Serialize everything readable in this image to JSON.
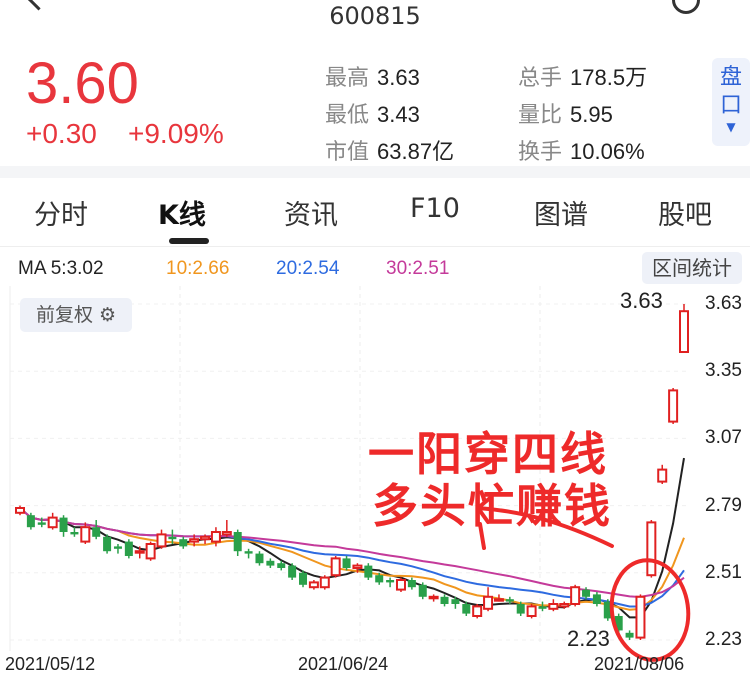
{
  "header": {
    "title": "600815",
    "back_icon": "chevron-left-icon",
    "search_icon": "search-icon"
  },
  "quote": {
    "price": "3.60",
    "change": "+0.30",
    "change_pct": "+9.09%",
    "color": "#e8363d",
    "stats": [
      {
        "k": "最高",
        "v": "3.63"
      },
      {
        "k": "最低",
        "v": "3.43"
      },
      {
        "k": "市值",
        "v": "63.87亿"
      },
      {
        "k": "总手",
        "v": "178.5万"
      },
      {
        "k": "量比",
        "v": "5.95"
      },
      {
        "k": "换手",
        "v": "10.06%"
      }
    ],
    "pankou": "盘口"
  },
  "tabs": [
    {
      "label": "分时"
    },
    {
      "label": "K线",
      "active": true
    },
    {
      "label": "资讯"
    },
    {
      "label": "F10"
    },
    {
      "label": "图谱"
    },
    {
      "label": "股吧"
    }
  ],
  "ma": {
    "ma5": "MA 5:3.02",
    "ma10": "10:2.66",
    "ma20": "20:2.54",
    "ma30": "30:2.51",
    "colors": {
      "ma5": "#222222",
      "ma10": "#f0961e",
      "ma20": "#2e6be0",
      "ma30": "#c43a9a"
    }
  },
  "range_stats": "区间统计",
  "adjust": "前复权",
  "annotation": {
    "line1": "一阳穿四线",
    "line2": "多头忙赚钱"
  },
  "chart_data": {
    "type": "candlestick",
    "y_ticks": [
      "3.63",
      "3.35",
      "3.07",
      "2.79",
      "2.51",
      "2.23"
    ],
    "x_ticks": [
      "2021/05/12",
      "2021/06/24",
      "2021/08/06"
    ],
    "high_label": "3.63",
    "low_label": "2.23",
    "up_color": "#e02020",
    "down_color": "#2aa04a",
    "candles_ohlc": [
      [
        2.76,
        2.79,
        2.75,
        2.78
      ],
      [
        2.75,
        2.76,
        2.69,
        2.7
      ],
      [
        2.72,
        2.74,
        2.7,
        2.71
      ],
      [
        2.7,
        2.76,
        2.69,
        2.74
      ],
      [
        2.74,
        2.75,
        2.66,
        2.68
      ],
      [
        2.68,
        2.7,
        2.66,
        2.67
      ],
      [
        2.64,
        2.72,
        2.63,
        2.7
      ],
      [
        2.7,
        2.73,
        2.65,
        2.66
      ],
      [
        2.66,
        2.67,
        2.59,
        2.6
      ],
      [
        2.62,
        2.63,
        2.59,
        2.61
      ],
      [
        2.64,
        2.65,
        2.57,
        2.58
      ],
      [
        2.6,
        2.62,
        2.57,
        2.6
      ],
      [
        2.57,
        2.64,
        2.56,
        2.63
      ],
      [
        2.62,
        2.69,
        2.61,
        2.67
      ],
      [
        2.66,
        2.69,
        2.63,
        2.65
      ],
      [
        2.65,
        2.66,
        2.61,
        2.62
      ],
      [
        2.64,
        2.67,
        2.62,
        2.65
      ],
      [
        2.65,
        2.67,
        2.63,
        2.66
      ],
      [
        2.64,
        2.7,
        2.62,
        2.68
      ],
      [
        2.67,
        2.73,
        2.66,
        2.68
      ],
      [
        2.68,
        2.69,
        2.58,
        2.6
      ],
      [
        2.6,
        2.61,
        2.57,
        2.59
      ],
      [
        2.59,
        2.6,
        2.54,
        2.55
      ],
      [
        2.56,
        2.57,
        2.53,
        2.54
      ],
      [
        2.55,
        2.56,
        2.52,
        2.53
      ],
      [
        2.54,
        2.55,
        2.48,
        2.49
      ],
      [
        2.51,
        2.52,
        2.45,
        2.46
      ],
      [
        2.45,
        2.48,
        2.44,
        2.47
      ],
      [
        2.45,
        2.5,
        2.44,
        2.49
      ],
      [
        2.5,
        2.58,
        2.49,
        2.57
      ],
      [
        2.57,
        2.58,
        2.52,
        2.53
      ],
      [
        2.53,
        2.55,
        2.51,
        2.54
      ],
      [
        2.54,
        2.55,
        2.48,
        2.49
      ],
      [
        2.5,
        2.51,
        2.46,
        2.47
      ],
      [
        2.48,
        2.49,
        2.45,
        2.47
      ],
      [
        2.44,
        2.49,
        2.43,
        2.48
      ],
      [
        2.48,
        2.49,
        2.44,
        2.45
      ],
      [
        2.46,
        2.47,
        2.4,
        2.41
      ],
      [
        2.41,
        2.42,
        2.39,
        2.41
      ],
      [
        2.41,
        2.42,
        2.37,
        2.38
      ],
      [
        2.4,
        2.41,
        2.36,
        2.38
      ],
      [
        2.38,
        2.39,
        2.33,
        2.34
      ],
      [
        2.33,
        2.38,
        2.32,
        2.37
      ],
      [
        2.36,
        2.45,
        2.35,
        2.41
      ],
      [
        2.4,
        2.42,
        2.39,
        2.4
      ],
      [
        2.4,
        2.41,
        2.38,
        2.39
      ],
      [
        2.38,
        2.39,
        2.33,
        2.34
      ],
      [
        2.33,
        2.38,
        2.32,
        2.37
      ],
      [
        2.37,
        2.39,
        2.35,
        2.36
      ],
      [
        2.36,
        2.4,
        2.35,
        2.38
      ],
      [
        2.37,
        2.39,
        2.36,
        2.38
      ],
      [
        2.38,
        2.46,
        2.37,
        2.45
      ],
      [
        2.44,
        2.45,
        2.4,
        2.41
      ],
      [
        2.42,
        2.43,
        2.37,
        2.38
      ],
      [
        2.39,
        2.4,
        2.31,
        2.32
      ],
      [
        2.33,
        2.34,
        2.26,
        2.27
      ],
      [
        2.26,
        2.27,
        2.23,
        2.24
      ],
      [
        2.24,
        2.42,
        2.23,
        2.41
      ],
      [
        2.5,
        2.73,
        2.49,
        2.72
      ],
      [
        2.89,
        2.96,
        2.88,
        2.94
      ],
      [
        3.14,
        3.28,
        3.13,
        3.27
      ],
      [
        3.43,
        3.63,
        3.43,
        3.6
      ]
    ]
  }
}
